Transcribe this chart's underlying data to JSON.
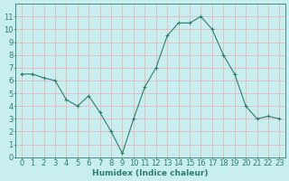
{
  "x": [
    0,
    1,
    2,
    3,
    4,
    5,
    6,
    7,
    8,
    9,
    10,
    11,
    12,
    13,
    14,
    15,
    16,
    17,
    18,
    19,
    20,
    21,
    22,
    23
  ],
  "y": [
    6.5,
    6.5,
    6.2,
    6.0,
    4.5,
    4.0,
    4.8,
    3.5,
    2.0,
    0.3,
    3.0,
    5.5,
    7.0,
    9.5,
    10.5,
    10.5,
    11.0,
    10.0,
    8.0,
    6.5,
    4.0,
    3.0,
    3.2,
    3.0
  ],
  "line_color": "#2e7d6e",
  "marker": "+",
  "marker_size": 3.5,
  "bg_color": "#c8eef0",
  "grid_color": "#e8b0b0",
  "xlabel": "Humidex (Indice chaleur)",
  "xlabel_fontsize": 6.5,
  "tick_fontsize": 6,
  "ylim": [
    0,
    12
  ],
  "xlim": [
    -0.5,
    23.5
  ],
  "yticks": [
    0,
    1,
    2,
    3,
    4,
    5,
    6,
    7,
    8,
    9,
    10,
    11
  ],
  "xticks": [
    0,
    1,
    2,
    3,
    4,
    5,
    6,
    7,
    8,
    9,
    10,
    11,
    12,
    13,
    14,
    15,
    16,
    17,
    18,
    19,
    20,
    21,
    22,
    23
  ]
}
